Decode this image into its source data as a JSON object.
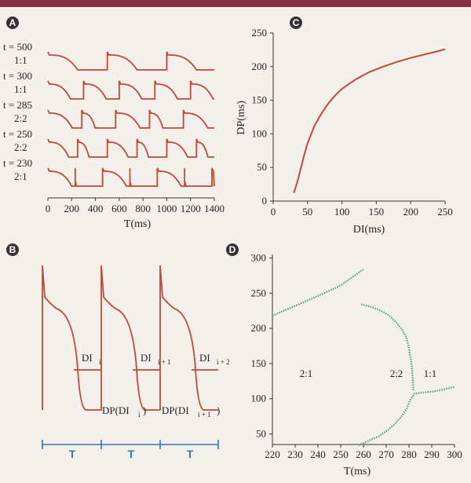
{
  "colors": {
    "trace": "#c0493a",
    "scatter": "#4f9a7e",
    "blue": "#2e78b8",
    "axis": "#333333",
    "label_disc": "#333333"
  },
  "panels": [
    "A",
    "B",
    "C",
    "D"
  ],
  "chart_data": [
    {
      "id": "A",
      "type": "line",
      "xlabel": "T(ms)",
      "xlim": [
        0,
        1400
      ],
      "x_ticks": [
        0,
        200,
        400,
        600,
        800,
        1000,
        1200,
        1400
      ],
      "series": [
        {
          "name": "t = 500",
          "ratio": "1:1",
          "period": 500
        },
        {
          "name": "t = 300",
          "ratio": "1:1",
          "period": 300
        },
        {
          "name": "t = 285",
          "ratio": "2:2",
          "period": 285
        },
        {
          "name": "t = 250",
          "ratio": "2:2",
          "period": 250
        },
        {
          "name": "t = 230",
          "ratio": "2:1",
          "period": 230
        }
      ]
    },
    {
      "id": "B",
      "type": "line",
      "annotations": {
        "di": [
          "DI",
          "DI",
          "DI"
        ],
        "di_sub": [
          "i",
          "i + 1",
          "i + 2"
        ],
        "dp": [
          "DP(DI",
          "DP(DI"
        ],
        "dp_sub": [
          "i",
          "i + 1"
        ],
        "dp_close": [
          ")",
          ")"
        ],
        "period": [
          "T",
          "T",
          "T"
        ]
      }
    },
    {
      "id": "C",
      "type": "line",
      "xlabel": "DI(ms)",
      "ylabel": "DP(ms)",
      "xlim": [
        0,
        250
      ],
      "ylim": [
        0,
        250
      ],
      "x_ticks": [
        0,
        50,
        100,
        150,
        200,
        250
      ],
      "y_ticks": [
        0,
        50,
        100,
        150,
        200,
        250
      ],
      "points": [
        [
          30,
          12
        ],
        [
          35,
          28
        ],
        [
          40,
          48
        ],
        [
          45,
          68
        ],
        [
          50,
          86
        ],
        [
          60,
          112
        ],
        [
          70,
          130
        ],
        [
          80,
          145
        ],
        [
          90,
          157
        ],
        [
          100,
          167
        ],
        [
          120,
          181
        ],
        [
          140,
          192
        ],
        [
          160,
          200
        ],
        [
          180,
          207
        ],
        [
          200,
          213
        ],
        [
          220,
          218
        ],
        [
          240,
          223
        ],
        [
          250,
          226
        ]
      ]
    },
    {
      "id": "D",
      "type": "scatter",
      "xlabel": "T(ms)",
      "xlim": [
        220,
        300
      ],
      "ylim": [
        35,
        305
      ],
      "x_ticks": [
        220,
        230,
        240,
        250,
        260,
        270,
        280,
        290,
        300
      ],
      "y_ticks": [
        50,
        100,
        150,
        200,
        250,
        300
      ],
      "region_labels": [
        "2:1",
        "2:2",
        "1:1"
      ],
      "branches": [
        {
          "name": "2:1 upper",
          "points": [
            [
              220,
              218
            ],
            [
              230,
              232
            ],
            [
              240,
              246
            ],
            [
              250,
              261
            ],
            [
              260,
              284
            ]
          ]
        },
        {
          "name": "2:2 upper",
          "points": [
            [
              259,
              234
            ],
            [
              263,
              231
            ],
            [
              267,
              226
            ],
            [
              271,
              219
            ],
            [
              274,
              210
            ],
            [
              277,
              198
            ],
            [
              279,
              186
            ],
            [
              280,
              172
            ],
            [
              281,
              152
            ],
            [
              281.5,
              135
            ],
            [
              282,
              112
            ]
          ]
        },
        {
          "name": "2:2 lower",
          "points": [
            [
              258,
              34
            ],
            [
              262,
              40
            ],
            [
              267,
              47
            ],
            [
              271,
              56
            ],
            [
              274,
              65
            ],
            [
              277,
              76
            ],
            [
              279,
              86
            ],
            [
              280,
              94
            ],
            [
              281,
              101
            ],
            [
              282,
              105
            ]
          ]
        },
        {
          "name": "1:1",
          "points": [
            [
              282,
              107
            ],
            [
              286,
              109
            ],
            [
              290,
              110
            ],
            [
              295,
              113
            ],
            [
              300,
              117
            ]
          ]
        }
      ]
    }
  ]
}
